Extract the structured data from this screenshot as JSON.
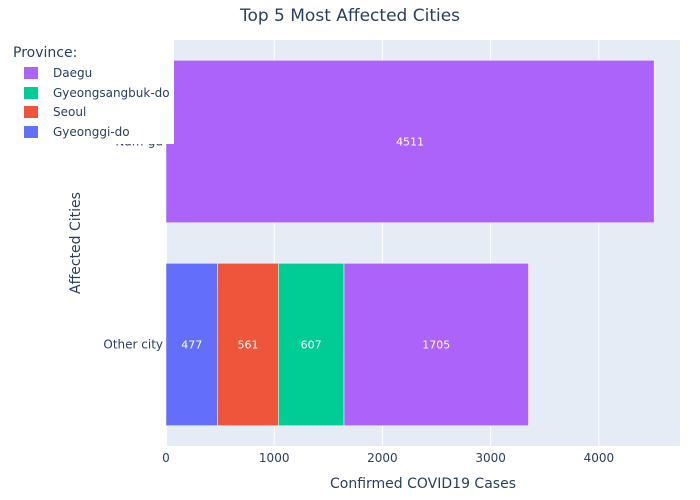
{
  "chart_data": {
    "type": "bar",
    "orientation": "horizontal",
    "barmode": "stack",
    "title": "Top 5 Most Affected Cities",
    "xlabel": "Confirmed COVID19 Cases",
    "ylabel": "Affected Cities",
    "xlim": [
      0,
      4750
    ],
    "xticks": [
      0,
      1000,
      2000,
      3000,
      4000
    ],
    "xtick_labels": [
      "0",
      "1000",
      "2000",
      "3000",
      "4000"
    ],
    "categories": [
      "Other city",
      "Nam-gu"
    ],
    "legend_title": "Province:",
    "legend_position": "top-left",
    "grid": true,
    "series": [
      {
        "name": "Gyeonggi-do",
        "color": "#636efa",
        "values": [
          477,
          null
        ]
      },
      {
        "name": "Seoul",
        "color": "#ef553b",
        "values": [
          561,
          null
        ]
      },
      {
        "name": "Gyeongsangbuk-do",
        "color": "#00cc96",
        "values": [
          607,
          null
        ]
      },
      {
        "name": "Daegu",
        "color": "#ab63fa",
        "values": [
          1705,
          4511
        ]
      }
    ],
    "legend_order": [
      "Daegu",
      "Gyeongsangbuk-do",
      "Seoul",
      "Gyeonggi-do"
    ]
  }
}
